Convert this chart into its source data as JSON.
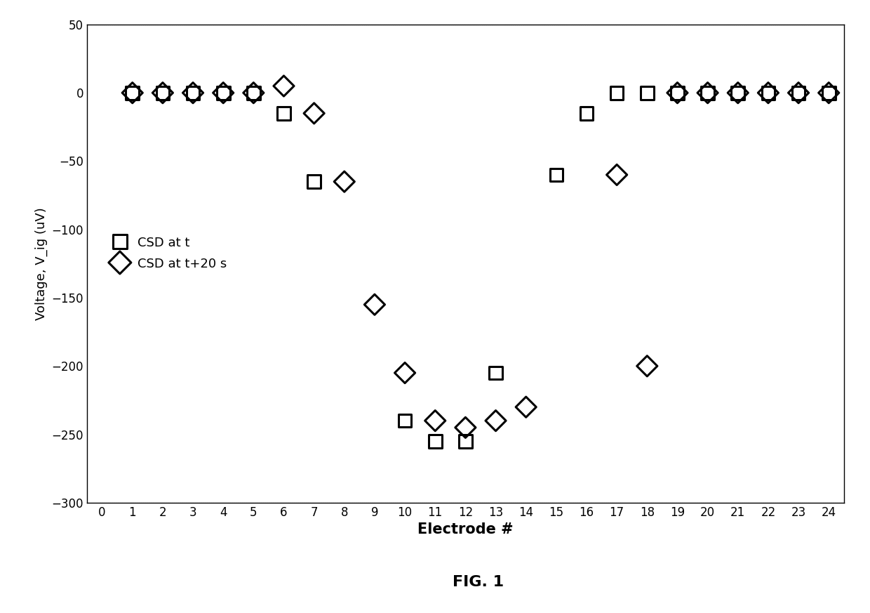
{
  "title": "FIG. 1",
  "xlabel": "Electrode #",
  "ylabel": "Voltage, V_ig (uV)",
  "ylim": [
    -300,
    50
  ],
  "xlim": [
    -0.5,
    24.5
  ],
  "yticks": [
    50,
    0,
    -50,
    -100,
    -150,
    -200,
    -250,
    -300
  ],
  "xticks": [
    0,
    1,
    2,
    3,
    4,
    5,
    6,
    7,
    8,
    9,
    10,
    11,
    12,
    13,
    14,
    15,
    16,
    17,
    18,
    19,
    20,
    21,
    22,
    23,
    24
  ],
  "csd_t_x": [
    1,
    2,
    3,
    4,
    5,
    6,
    7,
    10,
    11,
    12,
    13,
    15,
    16,
    17,
    18,
    19,
    20,
    21,
    22,
    23,
    24
  ],
  "csd_t_y": [
    0,
    0,
    0,
    0,
    0,
    -15,
    -65,
    -240,
    -255,
    -255,
    -205,
    -60,
    -15,
    0,
    0,
    0,
    0,
    0,
    0,
    0,
    0
  ],
  "csd_t20_x": [
    1,
    2,
    3,
    4,
    5,
    6,
    7,
    8,
    9,
    10,
    11,
    12,
    13,
    14,
    17,
    18,
    19,
    20,
    21,
    22,
    23,
    24
  ],
  "csd_t20_y": [
    0,
    0,
    0,
    0,
    0,
    5,
    -15,
    -65,
    -155,
    -205,
    -240,
    -245,
    -240,
    -230,
    -60,
    -200,
    0,
    0,
    0,
    0,
    0,
    0
  ],
  "background_color": "#ffffff",
  "marker_color": "#000000",
  "legend_square_label": "CSD at t",
  "legend_diamond_label": "CSD at t+20 s",
  "marker_size_sq": 180,
  "marker_size_dm": 220,
  "marker_lw": 2.2
}
